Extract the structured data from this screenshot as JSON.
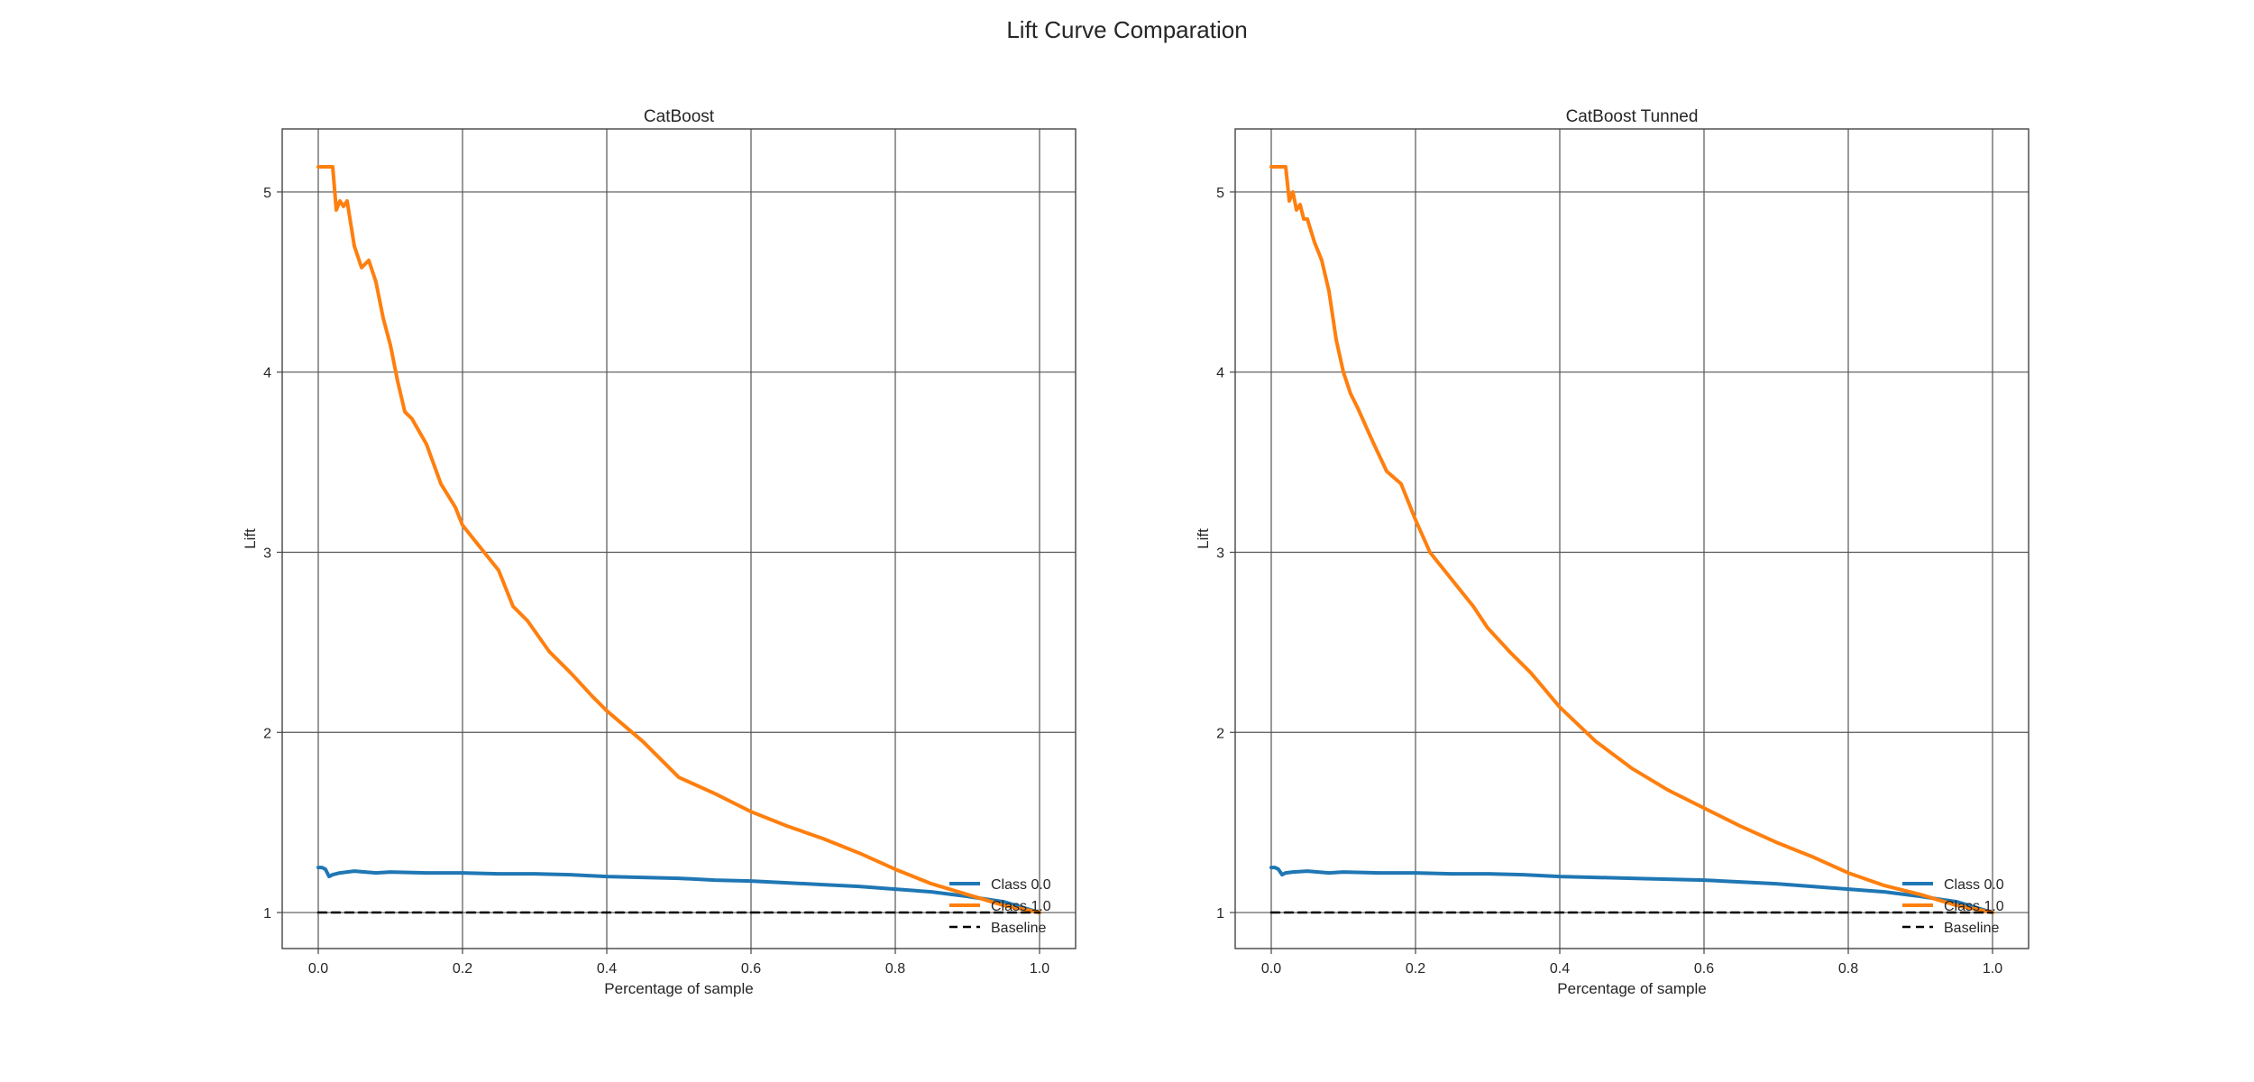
{
  "figure": {
    "title": "Lift Curve Comparation"
  },
  "colors": {
    "class0": "#1f77b4",
    "class1": "#ff7f0e",
    "baseline": "#000000",
    "grid": "#555555"
  },
  "chart_data": [
    {
      "type": "line",
      "title": "CatBoost",
      "xlabel": "Percentage of sample",
      "ylabel": "Lift",
      "xlim": [
        -0.05,
        1.05
      ],
      "ylim": [
        0.8,
        5.35
      ],
      "xticks": [
        0.0,
        0.2,
        0.4,
        0.6,
        0.8,
        1.0
      ],
      "xtick_labels": [
        "0.0",
        "0.2",
        "0.4",
        "0.6",
        "0.8",
        "1.0"
      ],
      "yticks": [
        1,
        2,
        3,
        4,
        5
      ],
      "ytick_labels": [
        "1",
        "2",
        "3",
        "4",
        "5"
      ],
      "grid": true,
      "legend": "lower-right",
      "series": [
        {
          "name": "Class 0.0",
          "color": "#1f77b4",
          "x": [
            0.0,
            0.005,
            0.01,
            0.015,
            0.02,
            0.03,
            0.05,
            0.08,
            0.1,
            0.15,
            0.2,
            0.25,
            0.3,
            0.35,
            0.4,
            0.45,
            0.5,
            0.55,
            0.6,
            0.65,
            0.7,
            0.75,
            0.8,
            0.85,
            0.9,
            0.95,
            1.0
          ],
          "y": [
            1.25,
            1.25,
            1.24,
            1.2,
            1.21,
            1.22,
            1.23,
            1.22,
            1.225,
            1.22,
            1.22,
            1.215,
            1.215,
            1.21,
            1.2,
            1.195,
            1.19,
            1.18,
            1.175,
            1.165,
            1.155,
            1.145,
            1.13,
            1.115,
            1.09,
            1.06,
            1.0
          ]
        },
        {
          "name": "Class 1.0",
          "color": "#ff7f0e",
          "x": [
            0.0,
            0.015,
            0.02,
            0.025,
            0.03,
            0.035,
            0.04,
            0.05,
            0.06,
            0.07,
            0.08,
            0.09,
            0.1,
            0.11,
            0.12,
            0.13,
            0.15,
            0.17,
            0.19,
            0.2,
            0.22,
            0.25,
            0.27,
            0.29,
            0.32,
            0.35,
            0.38,
            0.4,
            0.45,
            0.5,
            0.55,
            0.6,
            0.65,
            0.7,
            0.75,
            0.8,
            0.85,
            0.9,
            0.95,
            1.0
          ],
          "y": [
            5.14,
            5.14,
            5.14,
            4.9,
            4.95,
            4.92,
            4.95,
            4.7,
            4.58,
            4.62,
            4.5,
            4.3,
            4.15,
            3.95,
            3.78,
            3.74,
            3.6,
            3.38,
            3.25,
            3.15,
            3.05,
            2.9,
            2.7,
            2.62,
            2.45,
            2.33,
            2.2,
            2.12,
            1.95,
            1.75,
            1.66,
            1.56,
            1.48,
            1.41,
            1.33,
            1.24,
            1.16,
            1.1,
            1.04,
            1.0
          ]
        },
        {
          "name": "Baseline",
          "color": "#000000",
          "dashed": true,
          "x": [
            0.0,
            1.0
          ],
          "y": [
            1.0,
            1.0
          ]
        }
      ]
    },
    {
      "type": "line",
      "title": "CatBoost Tunned",
      "xlabel": "Percentage of sample",
      "ylabel": "Lift",
      "xlim": [
        -0.05,
        1.05
      ],
      "ylim": [
        0.8,
        5.35
      ],
      "xticks": [
        0.0,
        0.2,
        0.4,
        0.6,
        0.8,
        1.0
      ],
      "xtick_labels": [
        "0.0",
        "0.2",
        "0.4",
        "0.6",
        "0.8",
        "1.0"
      ],
      "yticks": [
        1,
        2,
        3,
        4,
        5
      ],
      "ytick_labels": [
        "1",
        "2",
        "3",
        "4",
        "5"
      ],
      "grid": true,
      "legend": "lower-right",
      "series": [
        {
          "name": "Class 0.0",
          "color": "#1f77b4",
          "x": [
            0.0,
            0.005,
            0.01,
            0.015,
            0.02,
            0.03,
            0.05,
            0.08,
            0.1,
            0.15,
            0.2,
            0.25,
            0.3,
            0.35,
            0.4,
            0.45,
            0.5,
            0.55,
            0.6,
            0.65,
            0.7,
            0.75,
            0.8,
            0.85,
            0.9,
            0.95,
            1.0
          ],
          "y": [
            1.25,
            1.25,
            1.24,
            1.21,
            1.22,
            1.225,
            1.23,
            1.22,
            1.225,
            1.22,
            1.22,
            1.215,
            1.215,
            1.21,
            1.2,
            1.195,
            1.19,
            1.185,
            1.18,
            1.17,
            1.16,
            1.145,
            1.13,
            1.115,
            1.09,
            1.06,
            1.0
          ]
        },
        {
          "name": "Class 1.0",
          "color": "#ff7f0e",
          "x": [
            0.0,
            0.02,
            0.025,
            0.03,
            0.035,
            0.04,
            0.045,
            0.05,
            0.06,
            0.07,
            0.08,
            0.09,
            0.1,
            0.11,
            0.12,
            0.14,
            0.16,
            0.18,
            0.2,
            0.22,
            0.25,
            0.28,
            0.3,
            0.33,
            0.36,
            0.4,
            0.45,
            0.5,
            0.55,
            0.6,
            0.65,
            0.7,
            0.75,
            0.8,
            0.85,
            0.9,
            0.95,
            1.0
          ],
          "y": [
            5.14,
            5.14,
            4.95,
            5.0,
            4.9,
            4.93,
            4.85,
            4.85,
            4.72,
            4.62,
            4.45,
            4.18,
            4.0,
            3.88,
            3.8,
            3.62,
            3.45,
            3.38,
            3.18,
            3.0,
            2.85,
            2.7,
            2.58,
            2.45,
            2.33,
            2.14,
            1.95,
            1.8,
            1.68,
            1.58,
            1.48,
            1.39,
            1.31,
            1.22,
            1.15,
            1.1,
            1.04,
            1.0
          ]
        },
        {
          "name": "Baseline",
          "color": "#000000",
          "dashed": true,
          "x": [
            0.0,
            1.0
          ],
          "y": [
            1.0,
            1.0
          ]
        }
      ]
    }
  ]
}
